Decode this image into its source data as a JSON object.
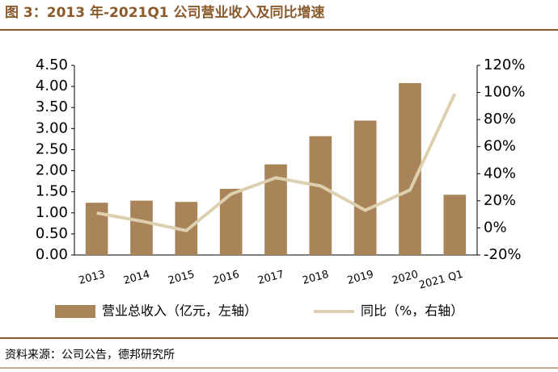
{
  "chart_data": {
    "type": "bar",
    "title": "图 3：2013 年-2021Q1 公司营业收入及同比增速",
    "source": "资料来源：公司公告，德邦研究所",
    "categories": [
      "2013",
      "2014",
      "2015",
      "2016",
      "2017",
      "2018",
      "2019",
      "2020",
      "2021 Q1"
    ],
    "series": [
      {
        "name": "营业总收入（亿元，左轴）",
        "type": "bar",
        "color": "#a98459",
        "values": [
          1.24,
          1.29,
          1.26,
          1.57,
          2.15,
          2.82,
          3.19,
          4.08,
          1.43
        ]
      },
      {
        "name": "同比（%，右轴）",
        "type": "line",
        "axis": "y2",
        "color": "#ddd0b0",
        "values": [
          11,
          5,
          -2,
          25,
          37,
          31,
          13,
          28,
          99
        ]
      }
    ],
    "ylim": [
      0,
      4.5
    ],
    "yticks": [
      {
        "value": 0,
        "label": "0.00"
      },
      {
        "value": 0.5,
        "label": "0.50"
      },
      {
        "value": 1,
        "label": "1.00"
      },
      {
        "value": 1.5,
        "label": "1.50"
      },
      {
        "value": 2,
        "label": "2.00"
      },
      {
        "value": 2.5,
        "label": "2.50"
      },
      {
        "value": 3,
        "label": "3.00"
      },
      {
        "value": 3.5,
        "label": "3.50"
      },
      {
        "value": 4,
        "label": "4.00"
      },
      {
        "value": 4.5,
        "label": "4.50"
      }
    ],
    "y2lim": [
      -20,
      120
    ],
    "y2ticks": [
      {
        "value": -20,
        "label": "-20%"
      },
      {
        "value": 0,
        "label": "0%"
      },
      {
        "value": 20,
        "label": "20%"
      },
      {
        "value": 40,
        "label": "40%"
      },
      {
        "value": 60,
        "label": "60%"
      },
      {
        "value": 80,
        "label": "80%"
      },
      {
        "value": 100,
        "label": "100%"
      },
      {
        "value": 120,
        "label": "120%"
      }
    ],
    "grid": false
  }
}
